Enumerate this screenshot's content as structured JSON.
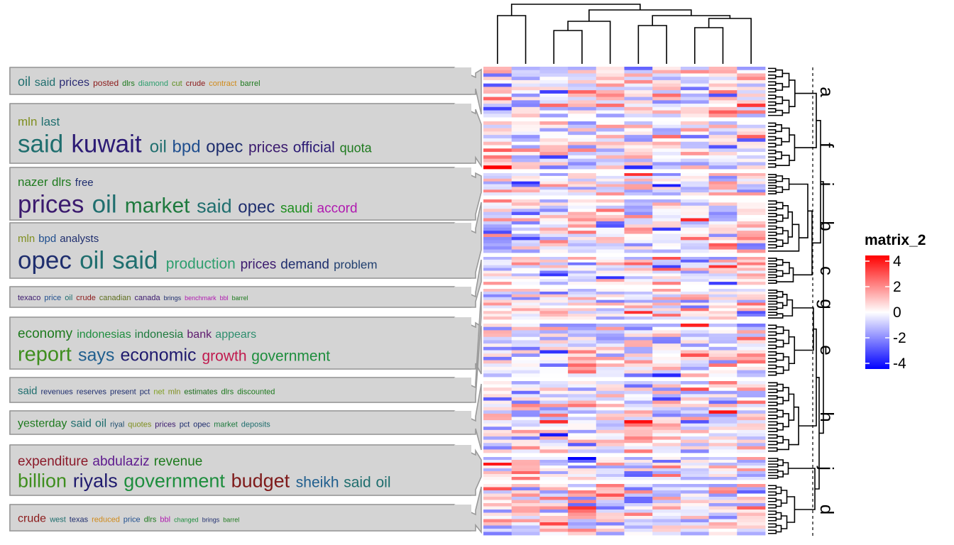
{
  "legend": {
    "title": "matrix_2",
    "ticks": [
      "4",
      "2",
      "0",
      "-2",
      "-4"
    ],
    "colors": {
      "high": "#ff0000",
      "mid": "#ffffff",
      "low": "#0000ff"
    }
  },
  "panel_colors": {
    "fill": "#d4d4d4",
    "stroke": "#9a9a9a"
  },
  "chart_data": {
    "type": "heatmap",
    "n_columns": 10,
    "value_range": [
      -4,
      4
    ],
    "row_groups": [
      "a",
      "f",
      "i",
      "b",
      "c",
      "g",
      "e",
      "h",
      "j",
      "d"
    ],
    "row_group_sizes": [
      15,
      14,
      8,
      17,
      10,
      11,
      16,
      22,
      8,
      16
    ],
    "word_clouds": [
      {
        "group": "a",
        "lines": [
          [
            {
              "w": "oil",
              "s": 18,
              "c": "#1f6e6e"
            },
            {
              "w": "said",
              "s": 16,
              "c": "#1f6e6e"
            },
            {
              "w": "prices",
              "s": 16,
              "c": "#2b2c74"
            },
            {
              "w": "posted",
              "s": 12,
              "c": "#8b1a1a"
            },
            {
              "w": "dlrs",
              "s": 11,
              "c": "#1e7a1e"
            },
            {
              "w": "diamond",
              "s": 11,
              "c": "#2e9e6e"
            },
            {
              "w": "cut",
              "s": 11,
              "c": "#5e8e1e"
            },
            {
              "w": "crude",
              "s": 11,
              "c": "#8b1a1a"
            },
            {
              "w": "contract",
              "s": 11,
              "c": "#d08a1a"
            },
            {
              "w": "barrel",
              "s": 11,
              "c": "#1e7a1e"
            }
          ]
        ]
      },
      {
        "group": "f",
        "lines": [
          [
            {
              "w": "mln",
              "s": 17,
              "c": "#7e8e1e"
            },
            {
              "w": "last",
              "s": 17,
              "c": "#1f6e6e"
            }
          ],
          [
            {
              "w": "said",
              "s": 35,
              "c": "#1f6e6e"
            },
            {
              "w": "kuwait",
              "s": 35,
              "c": "#2b1a74"
            },
            {
              "w": "oil",
              "s": 24,
              "c": "#1f6e6e"
            },
            {
              "w": "bpd",
              "s": 24,
              "c": "#1f4e8e"
            },
            {
              "w": "opec",
              "s": 24,
              "c": "#1f2e6e"
            },
            {
              "w": "prices",
              "s": 21,
              "c": "#3b1a6e"
            },
            {
              "w": "official",
              "s": 21,
              "c": "#2b1a74"
            },
            {
              "w": "quota",
              "s": 18,
              "c": "#1e7a1e"
            }
          ]
        ]
      },
      {
        "group": "i",
        "lines": [
          [
            {
              "w": "nazer",
              "s": 17,
              "c": "#1e7a1e"
            },
            {
              "w": "dlrs",
              "s": 17,
              "c": "#1e7a1e"
            },
            {
              "w": "free",
              "s": 15,
              "c": "#1f2e6e"
            }
          ],
          [
            {
              "w": "prices",
              "s": 35,
              "c": "#3b1a6e"
            },
            {
              "w": "oil",
              "s": 35,
              "c": "#1f6e6e"
            },
            {
              "w": "market",
              "s": 30,
              "c": "#1e7a3e"
            },
            {
              "w": "said",
              "s": 27,
              "c": "#1f6e6e"
            },
            {
              "w": "opec",
              "s": 24,
              "c": "#1f2e6e"
            },
            {
              "w": "saudi",
              "s": 19,
              "c": "#1e8e1e"
            },
            {
              "w": "accord",
              "s": 19,
              "c": "#b01ab0"
            }
          ]
        ]
      },
      {
        "group": "b",
        "lines": [
          [
            {
              "w": "mln",
              "s": 15,
              "c": "#7e8e1e"
            },
            {
              "w": "bpd",
              "s": 15,
              "c": "#1f4e8e"
            },
            {
              "w": "analysts",
              "s": 15,
              "c": "#1f2e6e"
            }
          ],
          [
            {
              "w": "opec",
              "s": 35,
              "c": "#1f2e6e"
            },
            {
              "w": "oil",
              "s": 35,
              "c": "#1f6e6e"
            },
            {
              "w": "said",
              "s": 35,
              "c": "#1f6e6e"
            },
            {
              "w": "production",
              "s": 21,
              "c": "#2e9e6e"
            },
            {
              "w": "prices",
              "s": 19,
              "c": "#3b1a6e"
            },
            {
              "w": "demand",
              "s": 19,
              "c": "#1f2e6e"
            },
            {
              "w": "problem",
              "s": 17,
              "c": "#1f3e6e"
            }
          ]
        ]
      },
      {
        "group": "c",
        "lines": [
          [
            {
              "w": "texaco",
              "s": 11,
              "c": "#3b1a6e"
            },
            {
              "w": "price",
              "s": 11,
              "c": "#1f4e8e"
            },
            {
              "w": "oil",
              "s": 11,
              "c": "#1f6e6e"
            },
            {
              "w": "crude",
              "s": 11,
              "c": "#8b1a1a"
            },
            {
              "w": "canadian",
              "s": 11,
              "c": "#5e6e1e"
            },
            {
              "w": "canada",
              "s": 11,
              "c": "#3b1a6e"
            },
            {
              "w": "brings",
              "s": 9,
              "c": "#1f2e6e"
            },
            {
              "w": "benchmark",
              "s": 9,
              "c": "#b01ab0"
            },
            {
              "w": "bbl",
              "s": 9,
              "c": "#b01ab0"
            },
            {
              "w": "barrel",
              "s": 9,
              "c": "#1e7a1e"
            }
          ]
        ]
      },
      {
        "group": "e",
        "lines": [
          [
            {
              "w": "economy",
              "s": 19,
              "c": "#1e7a1e"
            },
            {
              "w": "indonesias",
              "s": 16,
              "c": "#1e8e3e"
            },
            {
              "w": "indonesia",
              "s": 16,
              "c": "#1e7a3e"
            },
            {
              "w": "bank",
              "s": 16,
              "c": "#5e1a6e"
            },
            {
              "w": "appears",
              "s": 16,
              "c": "#2e8e6e"
            }
          ],
          [
            {
              "w": "report",
              "s": 29,
              "c": "#3e8e1e"
            },
            {
              "w": "says",
              "s": 25,
              "c": "#1f5e8e"
            },
            {
              "w": "economic",
              "s": 25,
              "c": "#1f1a6e"
            },
            {
              "w": "growth",
              "s": 21,
              "c": "#c01a4e"
            },
            {
              "w": "government",
              "s": 21,
              "c": "#1e8e3e"
            }
          ]
        ]
      },
      {
        "group": "g",
        "lines": [
          [
            {
              "w": "said",
              "s": 15,
              "c": "#1f6e6e"
            },
            {
              "w": "revenues",
              "s": 11,
              "c": "#1f2e6e"
            },
            {
              "w": "reserves",
              "s": 11,
              "c": "#1f2e6e"
            },
            {
              "w": "present",
              "s": 11,
              "c": "#1f2e6e"
            },
            {
              "w": "pct",
              "s": 11,
              "c": "#1f2e6e"
            },
            {
              "w": "net",
              "s": 11,
              "c": "#7e9e1e"
            },
            {
              "w": "mln",
              "s": 11,
              "c": "#7e8e1e"
            },
            {
              "w": "estimates",
              "s": 11,
              "c": "#1e6e1e"
            },
            {
              "w": "dlrs",
              "s": 11,
              "c": "#1e7a1e"
            },
            {
              "w": "discounted",
              "s": 11,
              "c": "#1e7a1e"
            }
          ]
        ]
      },
      {
        "group": "h",
        "lines": [
          [
            {
              "w": "yesterday",
              "s": 16,
              "c": "#1e7a1e"
            },
            {
              "w": "said",
              "s": 16,
              "c": "#1f6e6e"
            },
            {
              "w": "oil",
              "s": 16,
              "c": "#1f6e6e"
            },
            {
              "w": "riyal",
              "s": 11,
              "c": "#1f4e6e"
            },
            {
              "w": "quotes",
              "s": 11,
              "c": "#7e8e1e"
            },
            {
              "w": "prices",
              "s": 11,
              "c": "#3b1a6e"
            },
            {
              "w": "pct",
              "s": 11,
              "c": "#1f2e6e"
            },
            {
              "w": "opec",
              "s": 11,
              "c": "#1f2e6e"
            },
            {
              "w": "market",
              "s": 11,
              "c": "#1e7a3e"
            },
            {
              "w": "deposits",
              "s": 11,
              "c": "#1f6e6e"
            }
          ]
        ]
      },
      {
        "group": "j",
        "lines": [
          [
            {
              "w": "expenditure",
              "s": 19,
              "c": "#8b1a2a"
            },
            {
              "w": "abdulaziz",
              "s": 19,
              "c": "#5e1a8e"
            },
            {
              "w": "revenue",
              "s": 19,
              "c": "#1e7a1e"
            }
          ],
          [
            {
              "w": "billion",
              "s": 27,
              "c": "#3e8e1e"
            },
            {
              "w": "riyals",
              "s": 27,
              "c": "#1f1a6e"
            },
            {
              "w": "government",
              "s": 27,
              "c": "#1e8e3e"
            },
            {
              "w": "budget",
              "s": 27,
              "c": "#7e1a1a"
            },
            {
              "w": "sheikh",
              "s": 21,
              "c": "#1f5e8e"
            },
            {
              "w": "said",
              "s": 21,
              "c": "#1f6e6e"
            },
            {
              "w": "oil",
              "s": 21,
              "c": "#1f6e6e"
            }
          ]
        ]
      },
      {
        "group": "d",
        "lines": [
          [
            {
              "w": "crude",
              "s": 16,
              "c": "#8b1a1a"
            },
            {
              "w": "west",
              "s": 11,
              "c": "#1f6e6e"
            },
            {
              "w": "texas",
              "s": 11,
              "c": "#1f2e6e"
            },
            {
              "w": "reduced",
              "s": 11,
              "c": "#d08a1a"
            },
            {
              "w": "price",
              "s": 11,
              "c": "#1f4e8e"
            },
            {
              "w": "dlrs",
              "s": 11,
              "c": "#1e7a1e"
            },
            {
              "w": "bbl",
              "s": 11,
              "c": "#b01ab0"
            },
            {
              "w": "changed",
              "s": 9,
              "c": "#1e8e3e"
            },
            {
              "w": "brings",
              "s": 9,
              "c": "#1f2e6e"
            },
            {
              "w": "barrel",
              "s": 9,
              "c": "#1e7a1e"
            }
          ]
        ]
      }
    ]
  }
}
